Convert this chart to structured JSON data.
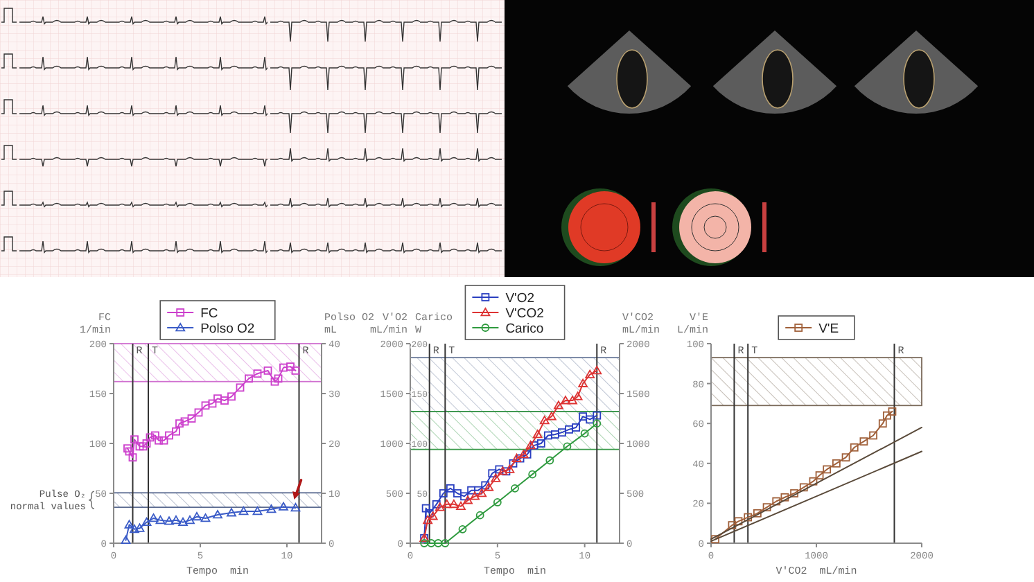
{
  "chart_data": [
    {
      "type": "line",
      "xlabel": "Tempo  min",
      "ylabel": "FC\n1/min",
      "y2label": "Polso O2\nmL",
      "xlim": [
        0,
        12
      ],
      "xticks": [
        0,
        5,
        10
      ],
      "ylim": [
        0,
        200
      ],
      "yticks": [
        0,
        50,
        100,
        150,
        200
      ],
      "y2lim": [
        0,
        40
      ],
      "y2ticks": [
        0,
        10,
        20,
        30,
        40
      ],
      "legend": "top",
      "series": [
        {
          "name": "FC",
          "color": "#cc3fcc",
          "marker": "square",
          "x": [
            0.8,
            0.9,
            1.1,
            1.2,
            1.5,
            1.7,
            1.9,
            2.1,
            2.4,
            2.6,
            2.9,
            3.2,
            3.6,
            3.8,
            4.1,
            4.5,
            4.9,
            5.3,
            5.7,
            6.0,
            6.4,
            6.8,
            7.3,
            7.8,
            8.3,
            8.9,
            9.3,
            9.5,
            9.8,
            10.2,
            10.5
          ],
          "values": [
            95,
            92,
            86,
            104,
            97,
            97,
            100,
            106,
            108,
            103,
            103,
            108,
            112,
            120,
            122,
            125,
            131,
            138,
            140,
            145,
            143,
            147,
            156,
            165,
            170,
            173,
            162,
            165,
            176,
            177,
            173
          ]
        },
        {
          "name": "Polso O2",
          "color": "#3a5bc7",
          "marker": "triangle",
          "axis": "y2",
          "x": [
            0.7,
            0.9,
            1.2,
            1.5,
            1.9,
            2.3,
            2.7,
            3.2,
            3.6,
            4.0,
            4.4,
            4.8,
            5.3,
            6.0,
            6.8,
            7.5,
            8.3,
            9.1,
            9.8,
            10.5
          ],
          "values": [
            0.6,
            3.7,
            2.8,
            3.0,
            4.2,
            5.0,
            4.6,
            4.4,
            4.6,
            4.2,
            4.6,
            5.3,
            5.0,
            5.7,
            6.1,
            6.4,
            6.4,
            6.8,
            7.3,
            7.1
          ]
        }
      ],
      "ref_lines": [
        {
          "axis": "x",
          "value": 1.1,
          "label": "R"
        },
        {
          "axis": "x",
          "value": 2.0,
          "label": "T"
        },
        {
          "axis": "x",
          "value": 10.7,
          "label": "R"
        }
      ],
      "bands": [
        {
          "axis": "y",
          "from": 162,
          "to": 200,
          "color": "#d070d0"
        },
        {
          "axis": "y2",
          "from": 7.2,
          "to": 10.1,
          "label": "Pulse O₂ normal values",
          "color": "#5a6a90"
        }
      ]
    },
    {
      "type": "line",
      "xlabel": "Tempo  min",
      "ylabel": "V'O2\nmL/min",
      "y3label": "Carico\nW",
      "y2label": "V'CO2\nmL/min",
      "xlim": [
        0,
        12
      ],
      "xticks": [
        0,
        5,
        10
      ],
      "ylim": [
        0,
        2000
      ],
      "yticks": [
        0,
        500,
        1000,
        1500,
        2000
      ],
      "y3lim": [
        0,
        200
      ],
      "y3ticks": [
        50,
        100,
        150,
        200
      ],
      "y2lim": [
        0,
        2000
      ],
      "y2ticks": [
        0,
        500,
        1000,
        1500,
        2000
      ],
      "legend": "top",
      "series": [
        {
          "name": "V'O2",
          "color": "#2a3fc0",
          "marker": "square",
          "x": [
            0.8,
            0.9,
            1.1,
            1.5,
            1.9,
            2.3,
            2.7,
            3.1,
            3.5,
            3.9,
            4.3,
            4.7,
            5.1,
            5.5,
            5.9,
            6.3,
            6.7,
            7.1,
            7.5,
            7.9,
            8.3,
            8.7,
            9.1,
            9.5,
            9.9,
            10.3,
            10.7
          ],
          "values": [
            50,
            350,
            300,
            390,
            500,
            550,
            500,
            470,
            530,
            530,
            580,
            700,
            740,
            720,
            800,
            850,
            890,
            980,
            1000,
            1080,
            1090,
            1110,
            1140,
            1160,
            1270,
            1240,
            1280
          ]
        },
        {
          "name": "V'CO2",
          "color": "#dd3333",
          "marker": "triangle",
          "axis": "y2",
          "x": [
            0.8,
            1.0,
            1.3,
            1.7,
            2.1,
            2.5,
            2.9,
            3.3,
            3.7,
            4.1,
            4.5,
            4.9,
            5.3,
            5.7,
            6.1,
            6.5,
            6.9,
            7.3,
            7.7,
            8.1,
            8.5,
            8.9,
            9.3,
            9.6,
            9.9,
            10.3,
            10.7
          ],
          "values": [
            50,
            230,
            270,
            360,
            390,
            390,
            370,
            430,
            470,
            500,
            560,
            650,
            720,
            740,
            850,
            890,
            980,
            1090,
            1230,
            1270,
            1380,
            1430,
            1430,
            1470,
            1600,
            1690,
            1730
          ]
        },
        {
          "name": "Carico",
          "color": "#2e9a3e",
          "marker": "circle",
          "axis": "y3",
          "x": [
            0.8,
            1.2,
            1.6,
            2.0,
            3,
            4,
            5,
            6,
            7,
            8,
            9,
            10,
            10.7
          ],
          "values": [
            0,
            0,
            0,
            0,
            14,
            28,
            41,
            55,
            69,
            83,
            97,
            110,
            120
          ]
        }
      ],
      "ref_lines": [
        {
          "axis": "x",
          "value": 1.1,
          "label": "R"
        },
        {
          "axis": "x",
          "value": 2.0,
          "label": "T"
        },
        {
          "axis": "x",
          "value": 10.7,
          "label": "R"
        }
      ],
      "bands": [
        {
          "axis": "y",
          "from": 1320,
          "to": 1860,
          "color": "#6a7a9a"
        },
        {
          "axis": "y",
          "from": 940,
          "to": 1320,
          "color": "#3a9a4a"
        }
      ]
    },
    {
      "type": "line",
      "xlabel": "V'CO2  mL/min",
      "ylabel": "V'E\nL/min",
      "xlim": [
        0,
        2000
      ],
      "xticks": [
        0,
        1000,
        2000
      ],
      "ylim": [
        0,
        100
      ],
      "yticks": [
        0,
        20,
        40,
        60,
        80,
        100
      ],
      "legend": "top",
      "series": [
        {
          "name": "V'E",
          "color": "#a0603a",
          "marker": "square",
          "x": [
            40,
            200,
            260,
            350,
            440,
            530,
            620,
            700,
            790,
            880,
            970,
            1030,
            1100,
            1190,
            1280,
            1360,
            1450,
            1540,
            1630,
            1670,
            1720
          ],
          "values": [
            2,
            9,
            11,
            13,
            15,
            18,
            21,
            23,
            25,
            28,
            31,
            34,
            37,
            40,
            43,
            48,
            51,
            54,
            60,
            64,
            66
          ]
        },
        {
          "type": "line",
          "color": "#5a4a3a",
          "marker": "none",
          "x": [
            0,
            2000
          ],
          "values": [
            2,
            58
          ]
        },
        {
          "type": "line",
          "color": "#5a4a3a",
          "marker": "none",
          "x": [
            0,
            2000
          ],
          "values": [
            1,
            46
          ]
        }
      ],
      "ref_lines": [
        {
          "axis": "x",
          "value": 220,
          "label": "R"
        },
        {
          "axis": "x",
          "value": 350,
          "label": "T"
        },
        {
          "axis": "x",
          "value": 1740,
          "label": "R"
        }
      ],
      "bands": [
        {
          "axis": "y",
          "from": 69,
          "to": 93,
          "color": "#7a6a5a"
        }
      ]
    }
  ]
}
